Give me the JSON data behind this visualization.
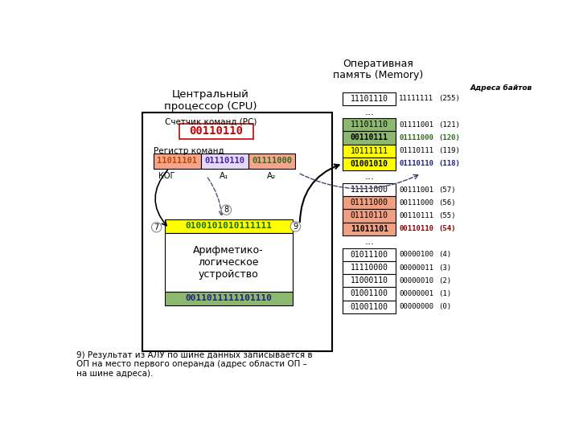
{
  "title_cpu": "Центральный\nпроцессор (CPU)",
  "title_mem": "Оперативная\nпамять (Memory)",
  "addr_label": "Адреса байтов",
  "pc_label": "Счетчик команд (PC)",
  "pc_value": "00110110",
  "ir_label": "Регистр команд",
  "ir_kog": "11011101",
  "ir_a1": "01110110",
  "ir_a2": "01111000",
  "kog_label": "КОГ",
  "a1_label": "A₁",
  "a2_label": "A₂",
  "alu_top": "0100101010111111",
  "alu_label": "Арифметико-\nлогическое\nустройство",
  "alu_bottom": "0011011111101110",
  "mem_cells": [
    {
      "val": "11101110",
      "addr": "11111111",
      "num": "(255)",
      "bg": "#ffffff",
      "addr_color": "#000000",
      "num_color": "#000000",
      "bold": false
    },
    {
      "val": "...",
      "addr": "",
      "num": "",
      "bg": "#ffffff",
      "addr_color": "#000000",
      "num_color": "#000000",
      "bold": false
    },
    {
      "val": "11101110",
      "addr": "01111001",
      "num": "(121)",
      "bg": "#8db870",
      "addr_color": "#000000",
      "num_color": "#000000",
      "bold": false
    },
    {
      "val": "00110111",
      "addr": "01111000",
      "num": "(120)",
      "bg": "#8db870",
      "addr_color": "#2e6b1e",
      "num_color": "#2e6b1e",
      "bold": true
    },
    {
      "val": "10111111",
      "addr": "01110111",
      "num": "(119)",
      "bg": "#ffff00",
      "addr_color": "#000000",
      "num_color": "#000000",
      "bold": false
    },
    {
      "val": "01001010",
      "addr": "01110110",
      "num": "(118)",
      "bg": "#ffff00",
      "addr_color": "#1a237e",
      "num_color": "#1a237e",
      "bold": true
    },
    {
      "val": "...",
      "addr": "",
      "num": "",
      "bg": "#ffffff",
      "addr_color": "#000000",
      "num_color": "#000000",
      "bold": false
    },
    {
      "val": "11111000",
      "addr": "00111001",
      "num": "(57)",
      "bg": "#ffffff",
      "addr_color": "#000000",
      "num_color": "#000000",
      "bold": false
    },
    {
      "val": "01111000",
      "addr": "00111000",
      "num": "(56)",
      "bg": "#f0a080",
      "addr_color": "#000000",
      "num_color": "#000000",
      "bold": false
    },
    {
      "val": "01110110",
      "addr": "00110111",
      "num": "(55)",
      "bg": "#f0a080",
      "addr_color": "#000000",
      "num_color": "#000000",
      "bold": false
    },
    {
      "val": "11011101",
      "addr": "00110110",
      "num": "(54)",
      "bg": "#f0a080",
      "addr_color": "#8b0000",
      "num_color": "#8b0000",
      "bold": true
    },
    {
      "val": "...",
      "addr": "",
      "num": "",
      "bg": "#ffffff",
      "addr_color": "#000000",
      "num_color": "#000000",
      "bold": false
    },
    {
      "val": "01011100",
      "addr": "00000100",
      "num": "(4)",
      "bg": "#ffffff",
      "addr_color": "#000000",
      "num_color": "#000000",
      "bold": false
    },
    {
      "val": "11110000",
      "addr": "00000011",
      "num": "(3)",
      "bg": "#ffffff",
      "addr_color": "#000000",
      "num_color": "#000000",
      "bold": false
    },
    {
      "val": "11000110",
      "addr": "00000010",
      "num": "(2)",
      "bg": "#ffffff",
      "addr_color": "#000000",
      "num_color": "#000000",
      "bold": false
    },
    {
      "val": "01001100",
      "addr": "00000001",
      "num": "(1)",
      "bg": "#ffffff",
      "addr_color": "#000000",
      "num_color": "#000000",
      "bold": false
    },
    {
      "val": "01001100",
      "addr": "00000000",
      "num": "(0)",
      "bg": "#ffffff",
      "addr_color": "#000000",
      "num_color": "#000000",
      "bold": false
    }
  ],
  "caption": "9) Результат из АЛУ по шине данных записывается в\nОП на место первого операнда (адрес области ОП –\nна шине адреса).",
  "bg_color": "#ffffff",
  "cpu_box_color": "#000000",
  "pc_box_color": "#cc0000",
  "ir_kog_color": "#f4a58a",
  "ir_a1_bg": "#e8d8f8",
  "ir_a2_color": "#f4a58a",
  "alu_top_color": "#ffff00",
  "alu_body_color": "#ffffff",
  "alu_bottom_color": "#8db870"
}
